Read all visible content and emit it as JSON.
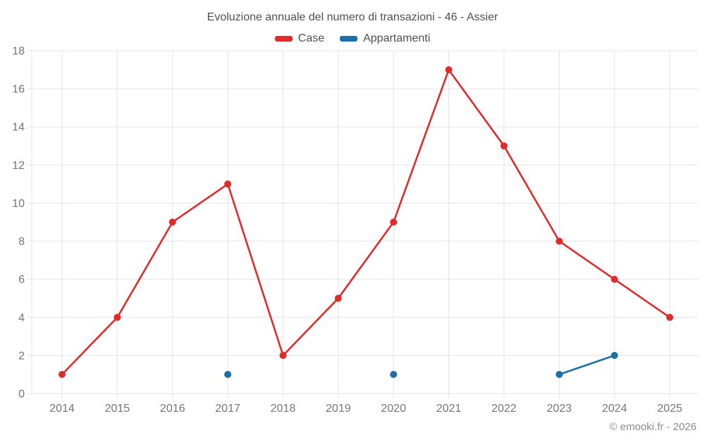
{
  "header": {
    "title": "Evoluzione annuale del numero di transazioni - 46 - Assier"
  },
  "footer": {
    "credit": "© emooki.fr - 2026"
  },
  "chart_data": {
    "type": "line",
    "title": "Evoluzione annuale del numero di transazioni - 46 - Assier",
    "categories": [
      "2014",
      "2015",
      "2016",
      "2017",
      "2018",
      "2019",
      "2020",
      "2021",
      "2022",
      "2023",
      "2024",
      "2025"
    ],
    "series": [
      {
        "name": "Case",
        "color": "#e02b2b",
        "values": [
          1,
          4,
          9,
          11,
          2,
          5,
          9,
          17,
          13,
          8,
          6,
          4
        ]
      },
      {
        "name": "Appartamenti",
        "color": "#1b6ea8",
        "values": [
          null,
          null,
          null,
          1,
          null,
          null,
          1,
          null,
          null,
          1,
          2,
          null
        ]
      }
    ],
    "xlabel": "",
    "ylabel": "",
    "ylim": [
      0,
      18
    ],
    "y_tick_step": 2,
    "grid": true,
    "legend_position": "top",
    "colors": {
      "grid": "#e4e4e4",
      "axis_text": "#757575",
      "title_text": "#4f4f4f",
      "credit_text": "#8a8a8a",
      "background": "#ffffff"
    }
  }
}
